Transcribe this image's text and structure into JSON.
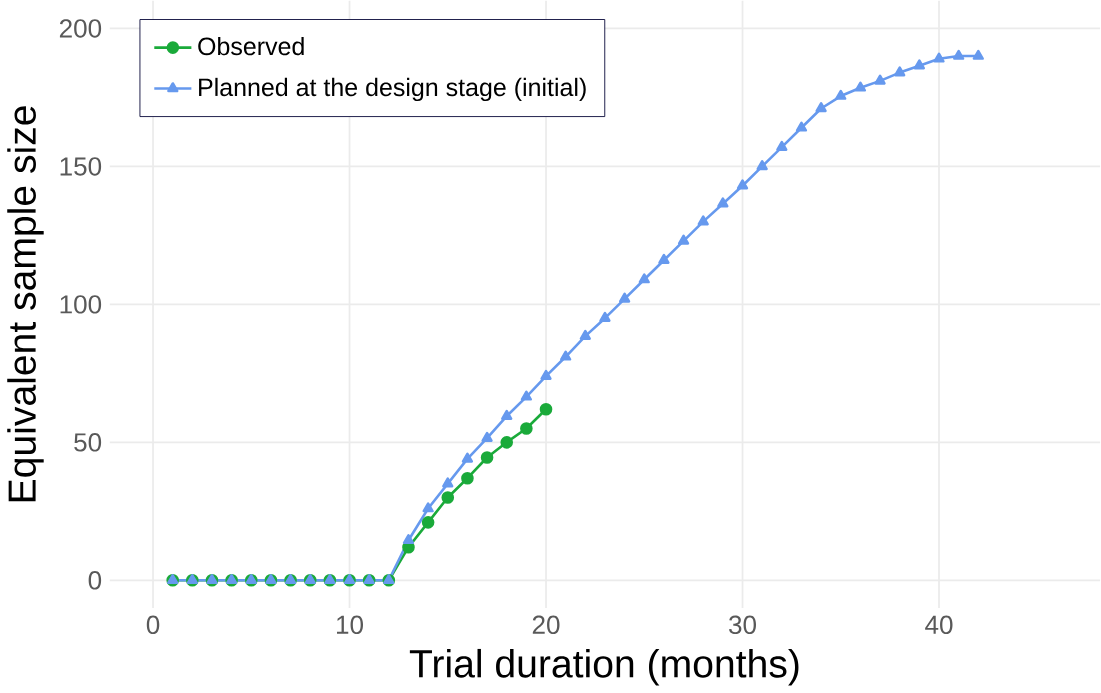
{
  "chart_data": {
    "type": "line",
    "xlabel": "Trial duration (months)",
    "ylabel": "Equivalent sample size",
    "xlim": [
      -2.2,
      48.2
    ],
    "ylim": [
      -10,
      210
    ],
    "xticks": [
      0,
      10,
      20,
      30,
      40
    ],
    "yticks": [
      0,
      50,
      100,
      150,
      200
    ],
    "grid": true,
    "legend": "top left",
    "series": [
      {
        "name": "Observed",
        "color": "#1aaa3a",
        "marker": "circle",
        "x": [
          1,
          2,
          3,
          4,
          5,
          6,
          7,
          8,
          9,
          10,
          11,
          12,
          13,
          14,
          15,
          16,
          17,
          18,
          19,
          20
        ],
        "values": [
          0,
          0,
          0,
          0,
          0,
          0,
          0,
          0,
          0,
          0,
          0,
          0,
          12,
          21,
          30,
          37,
          44.5,
          50,
          55,
          62
        ]
      },
      {
        "name": "Planned at the design stage (initial)",
        "color": "#6699ee",
        "marker": "triangle",
        "x": [
          1,
          2,
          3,
          4,
          5,
          6,
          7,
          8,
          9,
          10,
          11,
          12,
          13,
          14,
          15,
          16,
          17,
          18,
          19,
          20,
          21,
          22,
          23,
          24,
          25,
          26,
          27,
          28,
          29,
          30,
          31,
          32,
          33,
          34,
          35,
          36,
          37,
          38,
          39,
          40,
          41,
          42
        ],
        "values": [
          0,
          0,
          0,
          0,
          0,
          0,
          0,
          0,
          0,
          0,
          0,
          0,
          14.5,
          26,
          35,
          44,
          51.5,
          59.5,
          66.5,
          74,
          81,
          88.5,
          95,
          102,
          109,
          116,
          123,
          130,
          136.5,
          143,
          150,
          157,
          164,
          171,
          175.5,
          178.5,
          181,
          184,
          186.5,
          189,
          190,
          190
        ]
      }
    ]
  }
}
